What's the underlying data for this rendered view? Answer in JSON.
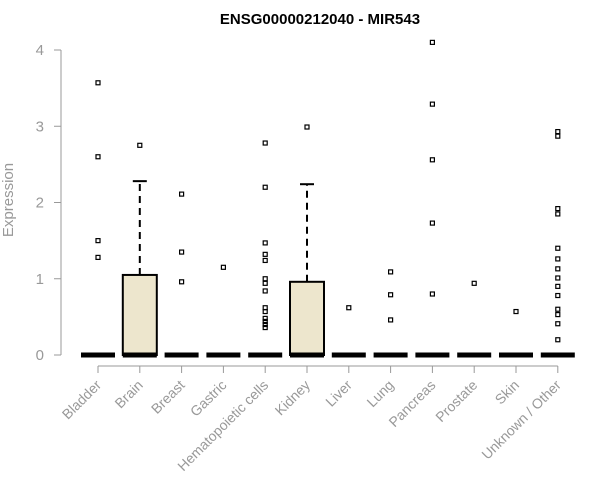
{
  "chart_data": {
    "type": "boxplot",
    "title": "ENSG00000212040 - MIR543",
    "xlabel": "",
    "ylabel": "Expression",
    "ylim": [
      0,
      4.1
    ],
    "yticks": [
      0,
      1,
      2,
      3,
      4
    ],
    "grid": false,
    "box_fill": "#ede6cd",
    "categories": [
      "Bladder",
      "Brain",
      "Breast",
      "Gastric",
      "Hematopoietic cells",
      "Kidney",
      "Liver",
      "Lung",
      "Pancreas",
      "Prostate",
      "Skin",
      "Unknown / Other"
    ],
    "boxes": [
      {
        "category": "Bladder",
        "q1": 0,
        "median": 0,
        "q3": 0,
        "whisker_low": 0,
        "whisker_high": 0,
        "outliers": [
          3.57,
          2.6,
          1.5,
          1.28
        ]
      },
      {
        "category": "Brain",
        "q1": 0,
        "median": 0,
        "q3": 1.05,
        "whisker_low": 0,
        "whisker_high": 2.28,
        "outliers": [
          2.75
        ]
      },
      {
        "category": "Breast",
        "q1": 0,
        "median": 0,
        "q3": 0,
        "whisker_low": 0,
        "whisker_high": 0,
        "outliers": [
          2.11,
          1.35,
          0.96
        ]
      },
      {
        "category": "Gastric",
        "q1": 0,
        "median": 0,
        "q3": 0,
        "whisker_low": 0,
        "whisker_high": 0,
        "outliers": [
          1.15
        ]
      },
      {
        "category": "Hematopoietic cells",
        "q1": 0,
        "median": 0,
        "q3": 0,
        "whisker_low": 0,
        "whisker_high": 0,
        "outliers": [
          2.78,
          2.2,
          1.47,
          1.32,
          1.24,
          1.0,
          0.94,
          0.84,
          0.62,
          0.57,
          0.48,
          0.44,
          0.4,
          0.36
        ]
      },
      {
        "category": "Kidney",
        "q1": 0,
        "median": 0,
        "q3": 0.96,
        "whisker_low": 0,
        "whisker_high": 2.24,
        "outliers": [
          2.99
        ]
      },
      {
        "category": "Liver",
        "q1": 0,
        "median": 0,
        "q3": 0,
        "whisker_low": 0,
        "whisker_high": 0,
        "outliers": [
          0.62
        ]
      },
      {
        "category": "Lung",
        "q1": 0,
        "median": 0,
        "q3": 0,
        "whisker_low": 0,
        "whisker_high": 0,
        "outliers": [
          1.09,
          0.79,
          0.46
        ]
      },
      {
        "category": "Pancreas",
        "q1": 0,
        "median": 0,
        "q3": 0,
        "whisker_low": 0,
        "whisker_high": 0,
        "outliers": [
          4.1,
          3.29,
          2.56,
          1.73,
          0.8
        ]
      },
      {
        "category": "Prostate",
        "q1": 0,
        "median": 0,
        "q3": 0,
        "whisker_low": 0,
        "whisker_high": 0,
        "outliers": [
          0.94
        ]
      },
      {
        "category": "Skin",
        "q1": 0,
        "median": 0,
        "q3": 0,
        "whisker_low": 0,
        "whisker_high": 0,
        "outliers": [
          0.57
        ]
      },
      {
        "category": "Unknown / Other",
        "q1": 0,
        "median": 0,
        "q3": 0,
        "whisker_low": 0,
        "whisker_high": 0,
        "outliers": [
          2.93,
          2.87,
          1.92,
          1.85,
          1.4,
          1.26,
          1.13,
          1.01,
          0.9,
          0.78,
          0.6,
          0.53,
          0.41,
          0.2
        ]
      }
    ]
  }
}
